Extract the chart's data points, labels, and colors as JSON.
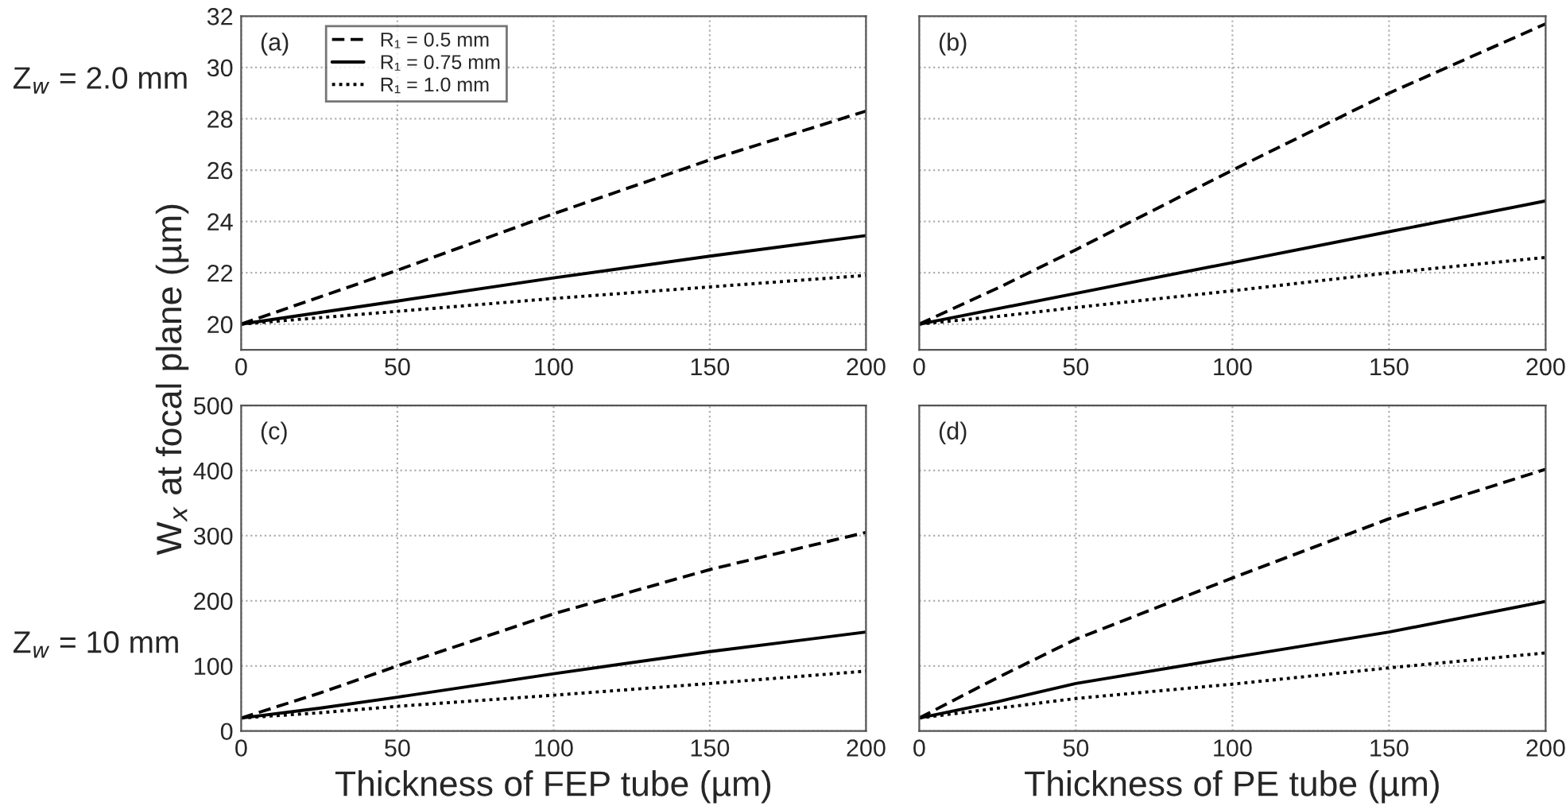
{
  "chart_data": [
    {
      "type": "line",
      "x": [
        0,
        25,
        50,
        100,
        150,
        200
      ],
      "xlim": [
        0,
        200
      ],
      "xticks": [
        0,
        50,
        100,
        150,
        200
      ],
      "ylim": [
        19,
        32
      ],
      "yticks": [
        20,
        22,
        24,
        26,
        28,
        30,
        32
      ],
      "grid": true,
      "legend": "top left",
      "ylabel": "W$_{x}$ at focal plane (µm)",
      "annotations": [
        "(a)",
        "Z$_{w}$ = 2.0 mm"
      ],
      "series": [
        {
          "name": "R₁ = 0.5 mm",
          "color": "#000000",
          "line_style": "dashed",
          "values": [
            20,
            21.05,
            22.1,
            24.3,
            26.4,
            28.3
          ]
        },
        {
          "name": "R₁ = 0.75 mm",
          "color": "#000000",
          "line_style": "solid",
          "values": [
            20,
            20.45,
            20.9,
            21.8,
            22.65,
            23.45
          ]
        },
        {
          "name": "R₁ = 1.0 mm",
          "color": "#000000",
          "line_style": "dotted",
          "values": [
            20,
            20.25,
            20.5,
            21.0,
            21.45,
            21.9
          ]
        }
      ]
    },
    {
      "type": "line",
      "x": [
        0,
        25,
        50,
        100,
        150,
        200
      ],
      "xlim": [
        0,
        200
      ],
      "xticks": [
        0,
        50,
        100,
        150,
        200
      ],
      "ylim": [
        19,
        32
      ],
      "yticks": [
        20,
        22,
        24,
        26,
        28,
        30,
        32
      ],
      "grid": true,
      "tick_labels": "x",
      "annotations": [
        "(b)"
      ],
      "series": [
        {
          "color": "#000000",
          "line_style": "dashed",
          "values": [
            20,
            21.4,
            22.9,
            26.0,
            29.0,
            31.7
          ]
        },
        {
          "color": "#000000",
          "line_style": "solid",
          "values": [
            20,
            20.6,
            21.2,
            22.4,
            23.6,
            24.8
          ]
        },
        {
          "color": "#000000",
          "line_style": "dotted",
          "values": [
            20,
            20.3,
            20.65,
            21.3,
            22.0,
            22.6
          ]
        }
      ]
    },
    {
      "type": "line",
      "x": [
        0,
        25,
        50,
        100,
        150,
        200
      ],
      "xlim": [
        0,
        200
      ],
      "xticks": [
        0,
        50,
        100,
        150,
        200
      ],
      "ylim": [
        0,
        500
      ],
      "yticks": [
        0,
        100,
        200,
        300,
        400,
        500
      ],
      "grid": true,
      "xlabel": "Thickness of FEP tube (µm)",
      "annotations": [
        "(c)",
        "Z$_{w}$ = 10 mm"
      ],
      "series": [
        {
          "color": "#000000",
          "line_style": "dashed",
          "values": [
            20,
            58,
            100,
            180,
            248,
            305
          ]
        },
        {
          "color": "#000000",
          "line_style": "solid",
          "values": [
            20,
            35,
            52,
            88,
            122,
            152
          ]
        },
        {
          "color": "#000000",
          "line_style": "dotted",
          "values": [
            20,
            28,
            38,
            55,
            73,
            92
          ]
        }
      ]
    },
    {
      "type": "line",
      "x": [
        0,
        25,
        50,
        100,
        150,
        200
      ],
      "xlim": [
        0,
        200
      ],
      "xticks": [
        0,
        50,
        100,
        150,
        200
      ],
      "ylim": [
        0,
        500
      ],
      "yticks": [
        0,
        100,
        200,
        300,
        400,
        500
      ],
      "grid": true,
      "tick_labels": "x",
      "xlabel": "Thickness of PE tube (µm)",
      "annotations": [
        "(d)"
      ],
      "series": [
        {
          "color": "#000000",
          "line_style": "dashed",
          "values": [
            20,
            82,
            141,
            235,
            326,
            402
          ]
        },
        {
          "color": "#000000",
          "line_style": "solid",
          "values": [
            20,
            45,
            73,
            113,
            152,
            199
          ]
        },
        {
          "color": "#000000",
          "line_style": "dotted",
          "values": [
            20,
            35,
            50,
            72,
            97,
            120
          ]
        }
      ]
    }
  ]
}
